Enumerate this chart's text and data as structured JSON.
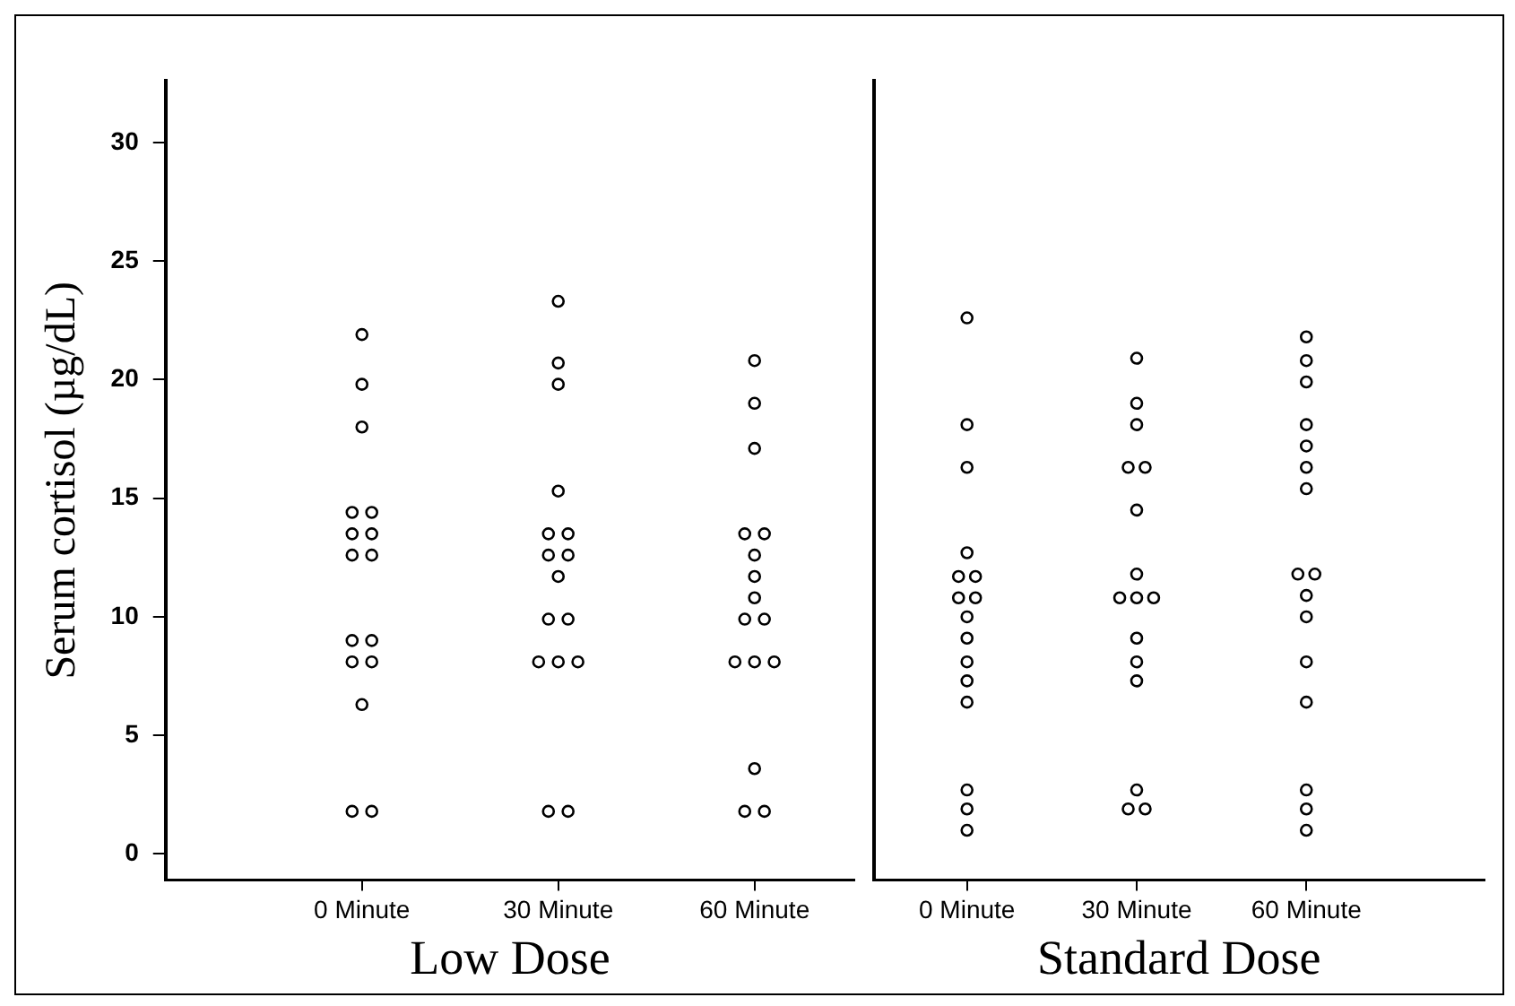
{
  "chart_data": [
    {
      "type": "scatter",
      "ylabel": "Serum cortisol (µg/dL)",
      "xlabel": "Low Dose",
      "marker": "circle",
      "grid": false,
      "legend": false,
      "categories": [
        "0 Minute",
        "30 Minute",
        "60 Minute"
      ],
      "ylim": [
        -1.1,
        32.6
      ],
      "yticks": [
        0,
        5,
        10,
        15,
        20,
        25,
        30
      ],
      "series": [
        {
          "color": "#000000",
          "x": [
            "0 Minute",
            "0 Minute",
            "0 Minute",
            "0 Minute",
            "0 Minute",
            "0 Minute",
            "0 Minute",
            "0 Minute",
            "0 Minute",
            "0 Minute",
            "0 Minute",
            "0 Minute",
            "0 Minute",
            "0 Minute",
            "0 Minute",
            "0 Minute"
          ],
          "values": [
            21.9,
            19.8,
            18.0,
            14.4,
            14.4,
            13.5,
            13.5,
            12.6,
            12.6,
            9.0,
            9.0,
            8.1,
            8.1,
            6.3,
            1.8,
            1.8
          ]
        },
        {
          "color": "#000000",
          "x": [
            "30 Minute",
            "30 Minute",
            "30 Minute",
            "30 Minute",
            "30 Minute",
            "30 Minute",
            "30 Minute",
            "30 Minute",
            "30 Minute",
            "30 Minute",
            "30 Minute",
            "30 Minute",
            "30 Minute",
            "30 Minute",
            "30 Minute",
            "30 Minute"
          ],
          "values": [
            23.3,
            20.7,
            19.8,
            15.3,
            13.5,
            13.5,
            12.6,
            12.6,
            11.7,
            9.9,
            9.9,
            8.1,
            8.1,
            8.1,
            1.8,
            1.8
          ]
        },
        {
          "color": "#000000",
          "x": [
            "60 Minute",
            "60 Minute",
            "60 Minute",
            "60 Minute",
            "60 Minute",
            "60 Minute",
            "60 Minute",
            "60 Minute",
            "60 Minute",
            "60 Minute",
            "60 Minute",
            "60 Minute",
            "60 Minute",
            "60 Minute",
            "60 Minute",
            "60 Minute"
          ],
          "values": [
            20.8,
            19.0,
            17.1,
            13.5,
            13.5,
            12.6,
            11.7,
            10.8,
            9.9,
            9.9,
            8.1,
            8.1,
            8.1,
            3.6,
            1.8,
            1.8
          ]
        }
      ]
    },
    {
      "type": "scatter",
      "xlabel": "Standard Dose",
      "marker": "circle",
      "grid": false,
      "legend": false,
      "tick_labels": "x",
      "categories": [
        "0 Minute",
        "30 Minute",
        "60 Minute"
      ],
      "ylim": [
        -1.1,
        32.6
      ],
      "series": [
        {
          "color": "#000000",
          "x": [
            "0 Minute",
            "0 Minute",
            "0 Minute",
            "0 Minute",
            "0 Minute",
            "0 Minute",
            "0 Minute",
            "0 Minute",
            "0 Minute",
            "0 Minute",
            "0 Minute",
            "0 Minute",
            "0 Minute",
            "0 Minute",
            "0 Minute",
            "0 Minute"
          ],
          "values": [
            22.6,
            18.1,
            16.3,
            12.7,
            11.7,
            11.7,
            10.8,
            10.8,
            10.0,
            9.1,
            8.1,
            7.3,
            6.4,
            2.7,
            1.9,
            1.0
          ]
        },
        {
          "color": "#000000",
          "x": [
            "30 Minute",
            "30 Minute",
            "30 Minute",
            "30 Minute",
            "30 Minute",
            "30 Minute",
            "30 Minute",
            "30 Minute",
            "30 Minute",
            "30 Minute",
            "30 Minute",
            "30 Minute",
            "30 Minute",
            "30 Minute",
            "30 Minute",
            "30 Minute"
          ],
          "values": [
            20.9,
            19.0,
            18.1,
            16.3,
            16.3,
            14.5,
            11.8,
            10.8,
            10.8,
            10.8,
            9.1,
            8.1,
            7.3,
            2.7,
            1.9,
            1.9
          ]
        },
        {
          "color": "#000000",
          "x": [
            "60 Minute",
            "60 Minute",
            "60 Minute",
            "60 Minute",
            "60 Minute",
            "60 Minute",
            "60 Minute",
            "60 Minute",
            "60 Minute",
            "60 Minute",
            "60 Minute",
            "60 Minute",
            "60 Minute",
            "60 Minute",
            "60 Minute",
            "60 Minute"
          ],
          "values": [
            21.8,
            20.8,
            19.9,
            18.1,
            17.2,
            16.3,
            15.4,
            11.8,
            11.8,
            10.9,
            10.0,
            8.1,
            6.4,
            2.7,
            1.9,
            1.0
          ]
        }
      ]
    }
  ]
}
